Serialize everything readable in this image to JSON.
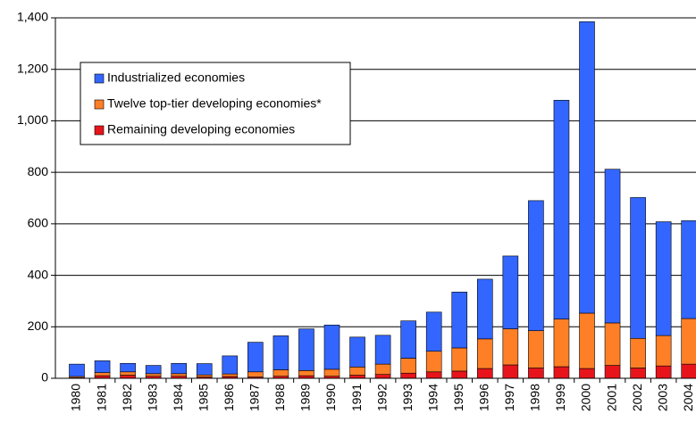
{
  "chart_data": {
    "type": "stacked_bar",
    "categories": [
      "1980",
      "1981",
      "1982",
      "1983",
      "1984",
      "1985",
      "1986",
      "1987",
      "1988",
      "1989",
      "1990",
      "1991",
      "1992",
      "1993",
      "1994",
      "1995",
      "1996",
      "1997",
      "1998",
      "1999",
      "2000",
      "2001",
      "2002",
      "2003",
      "2004"
    ],
    "series": [
      {
        "name": "Industrialized economies",
        "color": "#3366ff",
        "values": [
          48,
          46,
          33,
          32,
          40,
          44,
          70,
          115,
          132,
          162,
          172,
          116,
          112,
          145,
          152,
          217,
          232,
          283,
          505,
          850,
          1132,
          597,
          547,
          442,
          380
        ]
      },
      {
        "name": "Twelve top-tier developing economies*",
        "color": "#ff7f27",
        "values": [
          5,
          12,
          13,
          10,
          10,
          8,
          10,
          20,
          25,
          20,
          27,
          32,
          40,
          58,
          80,
          90,
          115,
          140,
          145,
          185,
          215,
          165,
          115,
          118,
          177
        ]
      },
      {
        "name": "Remaining developing economies",
        "color": "#e8141b",
        "values": [
          2,
          10,
          12,
          8,
          8,
          5,
          7,
          5,
          8,
          10,
          8,
          12,
          15,
          20,
          25,
          28,
          38,
          52,
          40,
          45,
          38,
          50,
          40,
          48,
          55
        ]
      }
    ],
    "ylim": [
      0,
      1400
    ],
    "yticks": [
      0,
      200,
      400,
      600,
      800,
      {
        "value": 1000,
        "label": "1,000"
      },
      {
        "value": 1200,
        "label": "1,200"
      },
      {
        "value": 1400,
        "label": "1,400"
      }
    ],
    "grid": true
  }
}
